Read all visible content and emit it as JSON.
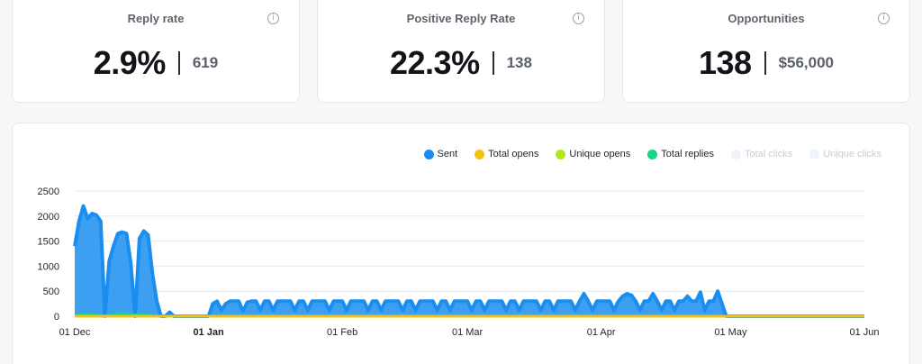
{
  "stats": [
    {
      "title": "Reply rate",
      "value": "2.9%",
      "sub": "619"
    },
    {
      "title": "Positive Reply Rate",
      "value": "22.3%",
      "sub": "138"
    },
    {
      "title": "Opportunities",
      "value": "138",
      "sub": "$56,000"
    }
  ],
  "info_icon": "info-icon",
  "colors": {
    "sent": "#1a8ef0",
    "total_opens": "#f2c313",
    "unique_opens": "#b5e61d",
    "total_replies": "#17d487",
    "total_clicks": "#eef4fb",
    "unique_clicks": "#eef4fb",
    "grid": "#e7e9ec"
  },
  "chart_data": {
    "type": "area",
    "legend_position": "top-right",
    "grid": true,
    "series": [
      {
        "name": "Sent",
        "color": "#1a8ef0",
        "visible": true
      },
      {
        "name": "Total opens",
        "color": "#f2c313",
        "visible": true
      },
      {
        "name": "Unique opens",
        "color": "#b5e61d",
        "visible": true
      },
      {
        "name": "Total replies",
        "color": "#17d487",
        "visible": true
      },
      {
        "name": "Total clicks",
        "color": "#eef4fb",
        "visible": false
      },
      {
        "name": "Unique clicks",
        "color": "#eef4fb",
        "visible": false
      }
    ],
    "y_ticks": [
      "0",
      "500",
      "1000",
      "1500",
      "2000",
      "2500"
    ],
    "ylim": [
      0,
      2500
    ],
    "x_ticks": [
      {
        "label": "01 Dec",
        "date": "2023-12-01",
        "bold": false
      },
      {
        "label": "01 Jan",
        "date": "2024-01-01",
        "bold": true
      },
      {
        "label": "01 Feb",
        "date": "2024-02-01",
        "bold": false
      },
      {
        "label": "01 Mar",
        "date": "2024-03-01",
        "bold": false
      },
      {
        "label": "01 Apr",
        "date": "2024-04-01",
        "bold": false
      },
      {
        "label": "01 May",
        "date": "2024-05-01",
        "bold": false
      },
      {
        "label": "01 Jun",
        "date": "2024-06-01",
        "bold": false
      }
    ],
    "xlim": [
      "2023-12-01",
      "2024-06-01"
    ],
    "sent": [
      [
        "2023-12-01",
        1400
      ],
      [
        "2023-12-02",
        1900
      ],
      [
        "2023-12-03",
        2200
      ],
      [
        "2023-12-04",
        1950
      ],
      [
        "2023-12-05",
        2050
      ],
      [
        "2023-12-06",
        2020
      ],
      [
        "2023-12-07",
        1900
      ],
      [
        "2023-12-08",
        0
      ],
      [
        "2023-12-09",
        1100
      ],
      [
        "2023-12-10",
        1400
      ],
      [
        "2023-12-11",
        1650
      ],
      [
        "2023-12-12",
        1680
      ],
      [
        "2023-12-13",
        1650
      ],
      [
        "2023-12-14",
        1050
      ],
      [
        "2023-12-15",
        0
      ],
      [
        "2023-12-16",
        1550
      ],
      [
        "2023-12-17",
        1700
      ],
      [
        "2023-12-18",
        1620
      ],
      [
        "2023-12-19",
        850
      ],
      [
        "2023-12-20",
        300
      ],
      [
        "2023-12-21",
        0
      ],
      [
        "2023-12-22",
        0
      ],
      [
        "2023-12-23",
        80
      ],
      [
        "2023-12-24",
        0
      ],
      [
        "2024-01-01",
        0
      ],
      [
        "2024-01-02",
        250
      ],
      [
        "2024-01-03",
        300
      ],
      [
        "2024-01-04",
        120
      ],
      [
        "2024-01-05",
        250
      ],
      [
        "2024-01-06",
        300
      ],
      [
        "2024-01-07",
        300
      ],
      [
        "2024-01-08",
        300
      ],
      [
        "2024-01-09",
        100
      ],
      [
        "2024-01-10",
        280
      ],
      [
        "2024-01-11",
        300
      ],
      [
        "2024-01-12",
        300
      ],
      [
        "2024-01-13",
        120
      ],
      [
        "2024-01-14",
        300
      ],
      [
        "2024-01-15",
        300
      ],
      [
        "2024-01-16",
        120
      ],
      [
        "2024-01-17",
        300
      ],
      [
        "2024-01-18",
        300
      ],
      [
        "2024-01-19",
        300
      ],
      [
        "2024-01-20",
        300
      ],
      [
        "2024-01-21",
        120
      ],
      [
        "2024-01-22",
        300
      ],
      [
        "2024-01-23",
        300
      ],
      [
        "2024-01-24",
        120
      ],
      [
        "2024-01-25",
        300
      ],
      [
        "2024-01-26",
        300
      ],
      [
        "2024-01-27",
        300
      ],
      [
        "2024-01-28",
        300
      ],
      [
        "2024-01-29",
        120
      ],
      [
        "2024-01-30",
        300
      ],
      [
        "2024-01-31",
        300
      ],
      [
        "2024-02-01",
        300
      ],
      [
        "2024-02-02",
        120
      ],
      [
        "2024-02-03",
        300
      ],
      [
        "2024-02-04",
        300
      ],
      [
        "2024-02-05",
        300
      ],
      [
        "2024-02-06",
        300
      ],
      [
        "2024-02-07",
        120
      ],
      [
        "2024-02-08",
        300
      ],
      [
        "2024-02-09",
        300
      ],
      [
        "2024-02-10",
        120
      ],
      [
        "2024-02-11",
        300
      ],
      [
        "2024-02-12",
        300
      ],
      [
        "2024-02-13",
        300
      ],
      [
        "2024-02-14",
        300
      ],
      [
        "2024-02-15",
        120
      ],
      [
        "2024-02-16",
        300
      ],
      [
        "2024-02-17",
        300
      ],
      [
        "2024-02-18",
        120
      ],
      [
        "2024-02-19",
        300
      ],
      [
        "2024-02-20",
        300
      ],
      [
        "2024-02-21",
        300
      ],
      [
        "2024-02-22",
        300
      ],
      [
        "2024-02-23",
        120
      ],
      [
        "2024-02-24",
        300
      ],
      [
        "2024-02-25",
        300
      ],
      [
        "2024-02-26",
        120
      ],
      [
        "2024-02-27",
        300
      ],
      [
        "2024-02-28",
        300
      ],
      [
        "2024-02-29",
        300
      ],
      [
        "2024-03-01",
        300
      ],
      [
        "2024-03-02",
        120
      ],
      [
        "2024-03-03",
        300
      ],
      [
        "2024-03-04",
        300
      ],
      [
        "2024-03-05",
        120
      ],
      [
        "2024-03-06",
        300
      ],
      [
        "2024-03-07",
        300
      ],
      [
        "2024-03-08",
        300
      ],
      [
        "2024-03-09",
        300
      ],
      [
        "2024-03-10",
        120
      ],
      [
        "2024-03-11",
        300
      ],
      [
        "2024-03-12",
        300
      ],
      [
        "2024-03-13",
        120
      ],
      [
        "2024-03-14",
        300
      ],
      [
        "2024-03-15",
        300
      ],
      [
        "2024-03-16",
        300
      ],
      [
        "2024-03-17",
        300
      ],
      [
        "2024-03-18",
        120
      ],
      [
        "2024-03-19",
        300
      ],
      [
        "2024-03-20",
        300
      ],
      [
        "2024-03-21",
        120
      ],
      [
        "2024-03-22",
        300
      ],
      [
        "2024-03-23",
        300
      ],
      [
        "2024-03-24",
        300
      ],
      [
        "2024-03-25",
        300
      ],
      [
        "2024-03-26",
        120
      ],
      [
        "2024-03-27",
        300
      ],
      [
        "2024-03-28",
        450
      ],
      [
        "2024-03-29",
        300
      ],
      [
        "2024-03-30",
        120
      ],
      [
        "2024-03-31",
        300
      ],
      [
        "2024-04-01",
        300
      ],
      [
        "2024-04-02",
        300
      ],
      [
        "2024-04-03",
        300
      ],
      [
        "2024-04-04",
        120
      ],
      [
        "2024-04-05",
        300
      ],
      [
        "2024-04-06",
        400
      ],
      [
        "2024-04-07",
        450
      ],
      [
        "2024-04-08",
        420
      ],
      [
        "2024-04-09",
        300
      ],
      [
        "2024-04-10",
        120
      ],
      [
        "2024-04-11",
        300
      ],
      [
        "2024-04-12",
        300
      ],
      [
        "2024-04-13",
        450
      ],
      [
        "2024-04-14",
        300
      ],
      [
        "2024-04-15",
        120
      ],
      [
        "2024-04-16",
        300
      ],
      [
        "2024-04-17",
        300
      ],
      [
        "2024-04-18",
        120
      ],
      [
        "2024-04-19",
        300
      ],
      [
        "2024-04-20",
        300
      ],
      [
        "2024-04-21",
        400
      ],
      [
        "2024-04-22",
        300
      ],
      [
        "2024-04-23",
        300
      ],
      [
        "2024-04-24",
        480
      ],
      [
        "2024-04-25",
        120
      ],
      [
        "2024-04-26",
        300
      ],
      [
        "2024-04-27",
        300
      ],
      [
        "2024-04-28",
        500
      ],
      [
        "2024-04-29",
        250
      ],
      [
        "2024-04-30",
        0
      ],
      [
        "2024-05-01",
        0
      ],
      [
        "2024-06-01",
        0
      ]
    ],
    "total_opens": [
      [
        "2023-12-01",
        0
      ],
      [
        "2024-06-01",
        0
      ]
    ],
    "unique_opens": [
      [
        "2023-12-01",
        0
      ],
      [
        "2024-06-01",
        0
      ]
    ],
    "total_replies": [
      [
        "2023-12-01",
        40
      ],
      [
        "2023-12-06",
        40
      ],
      [
        "2023-12-07",
        0
      ],
      [
        "2023-12-10",
        40
      ],
      [
        "2023-12-12",
        70
      ],
      [
        "2023-12-14",
        40
      ],
      [
        "2023-12-16",
        40
      ],
      [
        "2023-12-18",
        30
      ],
      [
        "2023-12-20",
        0
      ],
      [
        "2024-06-01",
        0
      ]
    ]
  }
}
